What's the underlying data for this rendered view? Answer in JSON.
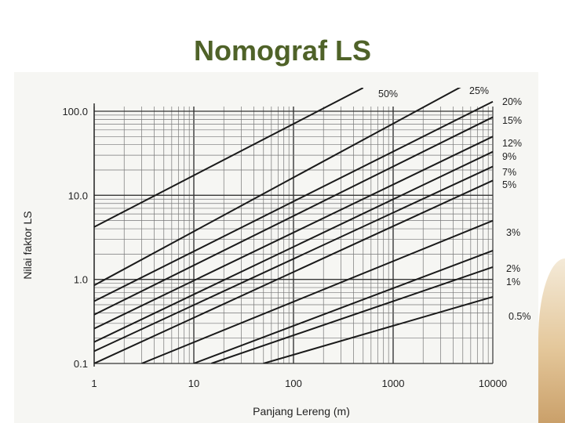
{
  "slide": {
    "title": "Nomograf LS"
  },
  "chart_data": {
    "type": "line",
    "title": "",
    "xlabel": "Panjang Lereng (m)",
    "ylabel": "Nilai faktor LS",
    "xscale": "log",
    "yscale": "log",
    "xlim": [
      1,
      10000
    ],
    "ylim": [
      0.1,
      100
    ],
    "grid": true,
    "x_ticks": [
      "1",
      "10",
      "100",
      "1000",
      "10000"
    ],
    "y_ticks": [
      "100.0",
      "10.0",
      "1.0",
      "0.1"
    ],
    "series": [
      {
        "name": "50%",
        "points": [
          [
            1,
            4.2
          ],
          [
            500,
            190
          ]
        ]
      },
      {
        "name": "25%",
        "points": [
          [
            1,
            0.85
          ],
          [
            5000,
            200
          ]
        ]
      },
      {
        "name": "20%",
        "points": [
          [
            1,
            0.55
          ],
          [
            10000,
            130
          ]
        ]
      },
      {
        "name": "15%",
        "points": [
          [
            1,
            0.38
          ],
          [
            10000,
            85
          ]
        ]
      },
      {
        "name": "12%",
        "points": [
          [
            1,
            0.26
          ],
          [
            10000,
            50
          ]
        ]
      },
      {
        "name": "9%",
        "points": [
          [
            1,
            0.18
          ],
          [
            10000,
            33
          ]
        ]
      },
      {
        "name": "7%",
        "points": [
          [
            1,
            0.14
          ],
          [
            10000,
            22
          ]
        ]
      },
      {
        "name": "5%",
        "points": [
          [
            1,
            0.1
          ],
          [
            10000,
            15
          ]
        ]
      },
      {
        "name": "3%",
        "points": [
          [
            3,
            0.1
          ],
          [
            10000,
            5
          ]
        ]
      },
      {
        "name": "2%",
        "points": [
          [
            10,
            0.1
          ],
          [
            10000,
            2.2
          ]
        ]
      },
      {
        "name": "1%",
        "points": [
          [
            15,
            0.1
          ],
          [
            10000,
            1.4
          ]
        ]
      },
      {
        "name": "0.5%",
        "points": [
          [
            50,
            0.1
          ],
          [
            10000,
            0.62
          ]
        ]
      }
    ]
  }
}
